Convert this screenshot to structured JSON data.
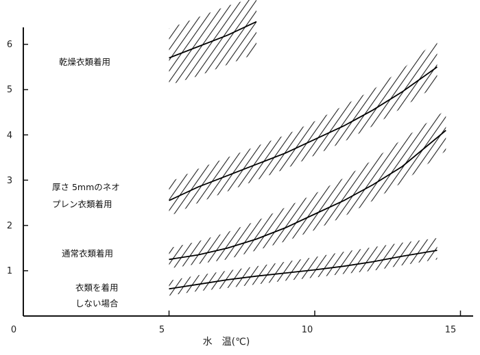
{
  "chart_data": {
    "type": "line",
    "xlabel": "水　温(℃)",
    "ylabel": "",
    "xlim": [
      0,
      15.6
    ],
    "ylim": [
      0,
      6.6
    ],
    "xticks": [
      0,
      5,
      10,
      15
    ],
    "yticks": [
      1,
      2,
      3,
      4,
      5,
      6
    ],
    "grid": false,
    "series": [
      {
        "name": "乾燥衣類着用",
        "x": [
          5,
          6,
          7,
          8
        ],
        "y": [
          5.7,
          5.95,
          6.2,
          6.5
        ],
        "band_low": [
          5.1,
          5.3,
          5.55,
          5.8
        ],
        "band_high": [
          6.35,
          6.6,
          6.85,
          7.05
        ]
      },
      {
        "name": "厚さ5mmのネオプレン衣類着用",
        "x": [
          5,
          6,
          7,
          8,
          9,
          10,
          11,
          12,
          13,
          14.2
        ],
        "y": [
          2.55,
          2.85,
          3.1,
          3.35,
          3.6,
          3.9,
          4.2,
          4.55,
          4.95,
          5.5
        ],
        "band_low": [
          2.2,
          2.5,
          2.75,
          3.0,
          3.25,
          3.55,
          3.85,
          4.2,
          4.6,
          5.1
        ],
        "band_high": [
          2.95,
          3.25,
          3.5,
          3.75,
          4.0,
          4.3,
          4.65,
          5.0,
          5.45,
          6.1
        ]
      },
      {
        "name": "通常衣類着用",
        "x": [
          5,
          6,
          7,
          8,
          9,
          10,
          11,
          12,
          13,
          14.5
        ],
        "y": [
          1.25,
          1.35,
          1.5,
          1.7,
          1.95,
          2.25,
          2.55,
          2.9,
          3.3,
          4.1
        ],
        "band_low": [
          1.05,
          1.15,
          1.25,
          1.45,
          1.65,
          1.9,
          2.2,
          2.55,
          2.95,
          3.65
        ],
        "band_high": [
          1.5,
          1.65,
          1.85,
          2.1,
          2.4,
          2.7,
          3.05,
          3.45,
          3.9,
          4.55
        ]
      },
      {
        "name": "衣類を着用しない場合",
        "x": [
          5,
          6,
          7,
          8,
          9,
          10,
          11,
          12,
          13,
          14.2
        ],
        "y": [
          0.6,
          0.7,
          0.8,
          0.88,
          0.95,
          1.02,
          1.1,
          1.2,
          1.32,
          1.45
        ],
        "band_low": [
          0.45,
          0.55,
          0.62,
          0.7,
          0.78,
          0.85,
          0.93,
          1.0,
          1.12,
          1.25
        ],
        "band_high": [
          0.78,
          0.9,
          1.0,
          1.1,
          1.2,
          1.3,
          1.42,
          1.52,
          1.62,
          1.72
        ]
      }
    ]
  },
  "annotations": {
    "dry": "乾燥衣類着用",
    "neoprene_1": "厚さ 5mmのネオ",
    "neoprene_2": "プレン衣類着用",
    "normal": "通常衣類着用",
    "none_1": "衣類を着用",
    "none_2": "しない場合"
  }
}
